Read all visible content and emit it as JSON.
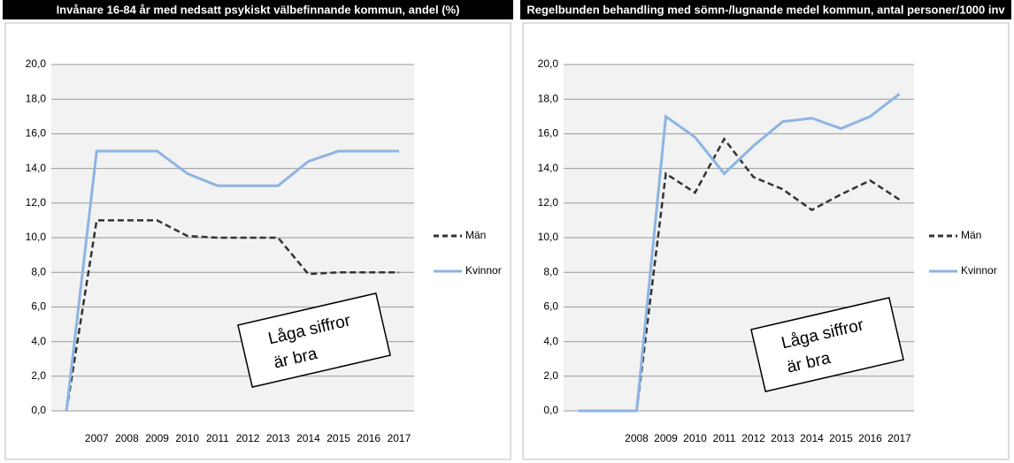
{
  "chart_data": [
    {
      "type": "line",
      "title": "Invånare 16-84 år med nedsatt psykiskt välbefinnande kommun, andel (%)",
      "categories": [
        null,
        "2007",
        "2008",
        "2009",
        "2010",
        "2011",
        "2012",
        "2013",
        "2014",
        "2015",
        "2016",
        "2017"
      ],
      "series": [
        {
          "name": "Män",
          "color": "#333333",
          "dash": true,
          "values": [
            0,
            11,
            11,
            11,
            10.1,
            10,
            10,
            10,
            7.9,
            8,
            8,
            8
          ]
        },
        {
          "name": "Kvinnor",
          "color": "#8eb4e3",
          "dash": false,
          "values": [
            0,
            15,
            15,
            15,
            13.7,
            13,
            13,
            13,
            14.4,
            15,
            15,
            15
          ]
        }
      ],
      "ylim": [
        0,
        20
      ],
      "yticks": [
        {
          "value": 0,
          "label": "0,0"
        },
        {
          "value": 2,
          "label": "2,0"
        },
        {
          "value": 4,
          "label": "4,0"
        },
        {
          "value": 6,
          "label": "6,0"
        },
        {
          "value": 8,
          "label": "8,0"
        },
        {
          "value": 10,
          "label": "10,0"
        },
        {
          "value": 12,
          "label": "12,0"
        },
        {
          "value": 14,
          "label": "14,0"
        },
        {
          "value": 16,
          "label": "16,0"
        },
        {
          "value": 18,
          "label": "18,0"
        },
        {
          "value": 20,
          "label": "20,0"
        }
      ],
      "grid": true,
      "legend": "right",
      "annotation": [
        "Låga siffror",
        "är bra"
      ]
    },
    {
      "type": "line",
      "title": "Regelbunden behandling med sömn-/lugnande medel kommun, antal personer/1000 inv",
      "categories": [
        null,
        null,
        "2008",
        "2009",
        "2010",
        "2011",
        "2012",
        "2013",
        "2014",
        "2015",
        "2016",
        "2017"
      ],
      "series": [
        {
          "name": "Män",
          "color": "#333333",
          "dash": true,
          "values": [
            0,
            0,
            0,
            13.7,
            12.6,
            15.7,
            13.5,
            12.8,
            11.6,
            12.5,
            13.3,
            12.2
          ]
        },
        {
          "name": "Kvinnor",
          "color": "#8eb4e3",
          "dash": false,
          "values": [
            0,
            0,
            0,
            17.0,
            15.8,
            13.7,
            15.3,
            16.7,
            16.9,
            16.3,
            17.0,
            18.3
          ]
        }
      ],
      "ylim": [
        0,
        20
      ],
      "yticks": [
        {
          "value": 0,
          "label": "0,0"
        },
        {
          "value": 2,
          "label": "2,0"
        },
        {
          "value": 4,
          "label": "4,0"
        },
        {
          "value": 6,
          "label": "6,0"
        },
        {
          "value": 8,
          "label": "8,0"
        },
        {
          "value": 10,
          "label": "10,0"
        },
        {
          "value": 12,
          "label": "12,0"
        },
        {
          "value": 14,
          "label": "14,0"
        },
        {
          "value": 16,
          "label": "16,0"
        },
        {
          "value": 18,
          "label": "18,0"
        },
        {
          "value": 20,
          "label": "20,0"
        }
      ],
      "grid": true,
      "legend": "right",
      "annotation": [
        "Låga siffror",
        "är bra"
      ]
    }
  ]
}
